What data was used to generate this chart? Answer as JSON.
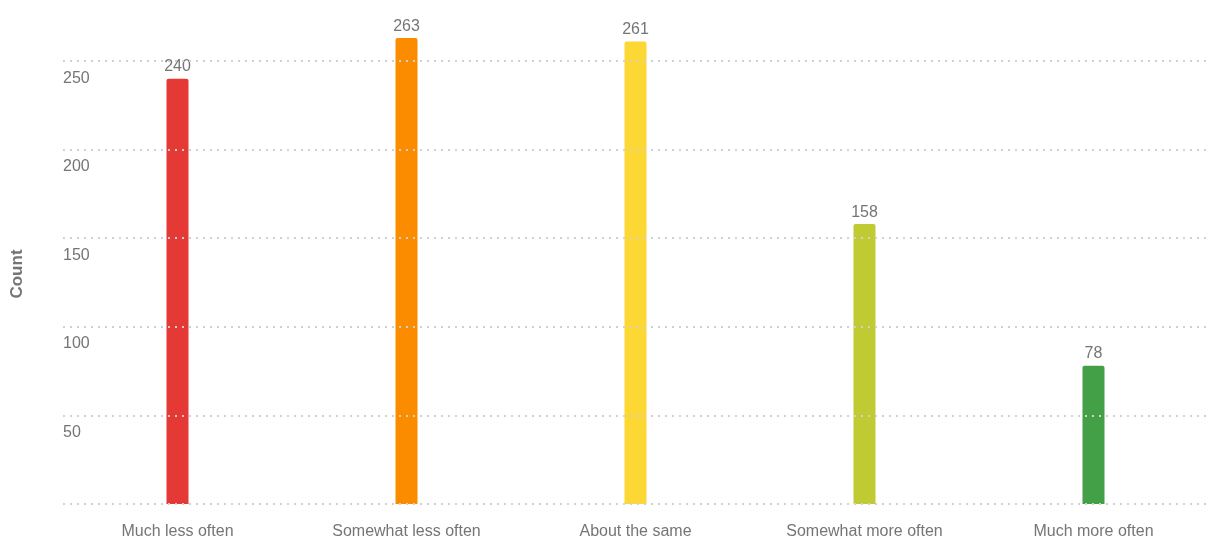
{
  "chart_data": {
    "type": "bar",
    "ylabel": "Count",
    "categories": [
      "Much less often",
      "Somewhat less often",
      "About the same",
      "Somewhat more often",
      "Much more often"
    ],
    "values": [
      240,
      263,
      261,
      158,
      78
    ],
    "colors": [
      "#e53935",
      "#fb8c00",
      "#fdd835",
      "#c0ca33",
      "#43a047"
    ],
    "ylim": [
      0,
      263
    ],
    "yticks": [
      {
        "value": 0,
        "label": null
      },
      50,
      100,
      150,
      200,
      250
    ],
    "grid": "y",
    "data_labels": true
  }
}
